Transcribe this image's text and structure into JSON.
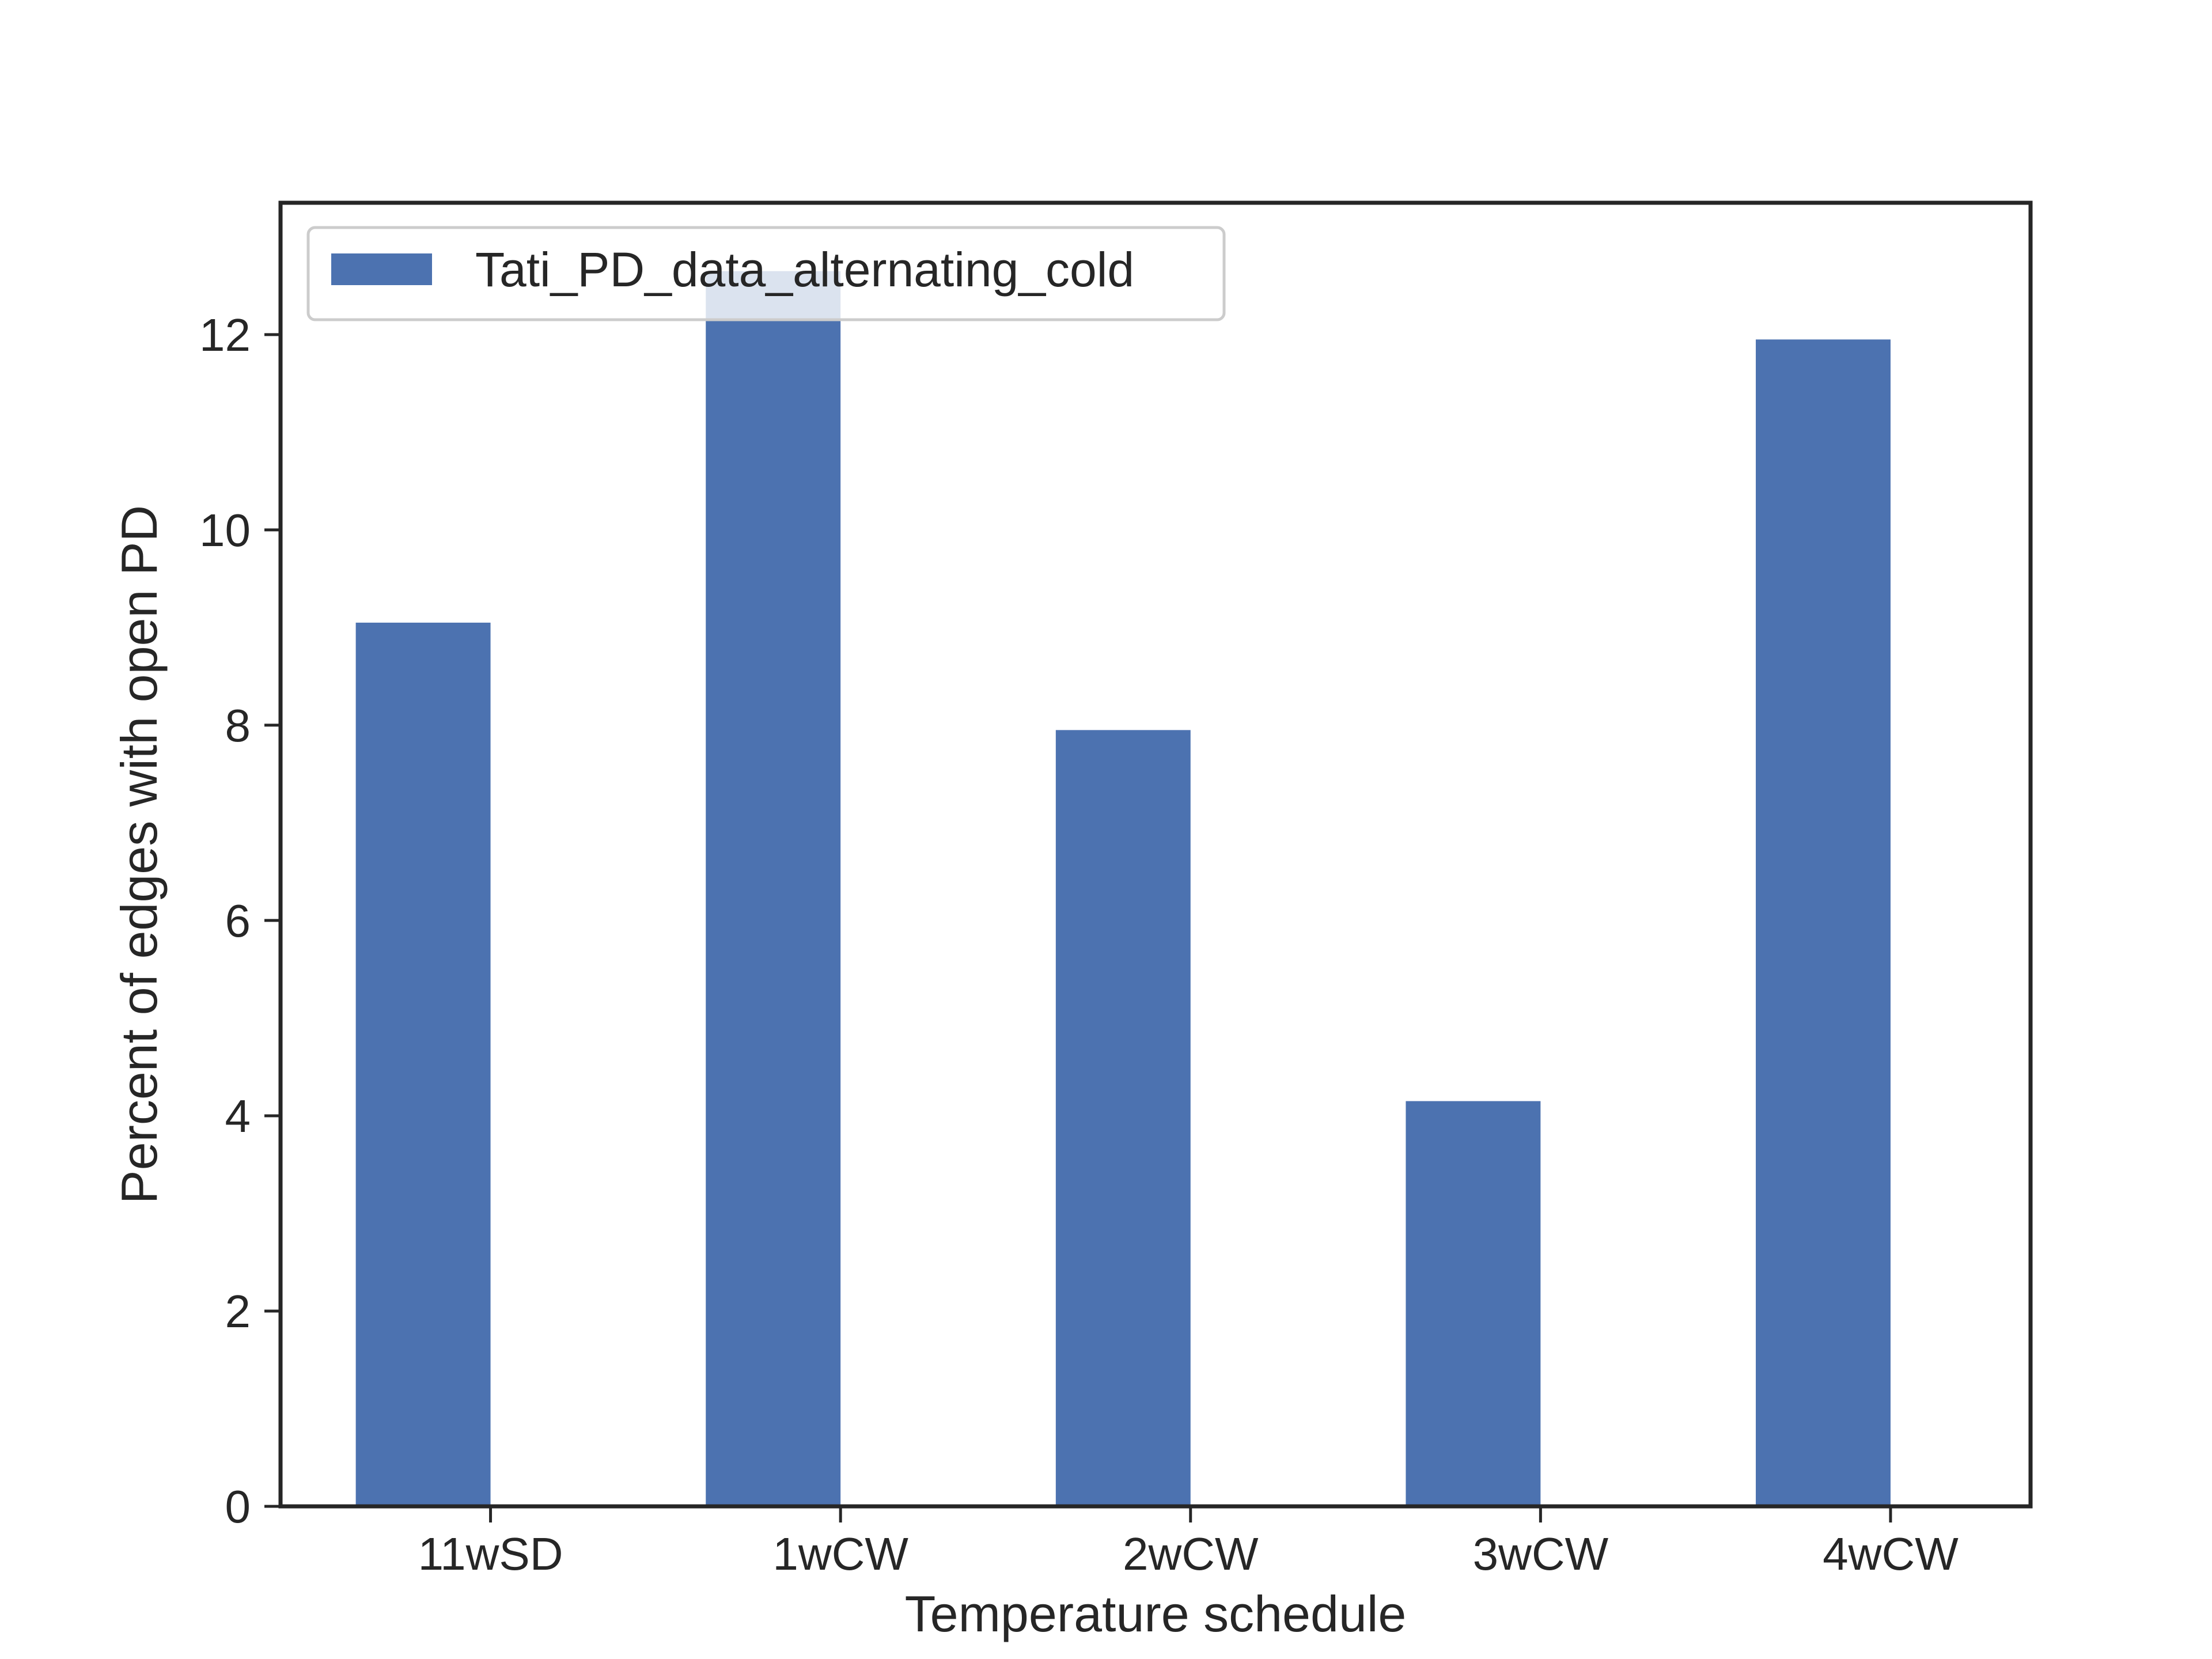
{
  "chart_data": {
    "type": "bar",
    "categories": [
      "11wSD",
      "1wCW",
      "2wCW",
      "3wCW",
      "4wCW"
    ],
    "series": [
      {
        "name": "Tati_PD_data_alternating_cold",
        "values": [
          9.05,
          12.65,
          7.95,
          4.15,
          11.95
        ],
        "color": "#4c72b0"
      }
    ],
    "xlabel": "Temperature schedule",
    "ylabel": "Percent of edges with open PD",
    "ylim": [
      0,
      13.35
    ],
    "yticks": [
      0,
      2,
      4,
      6,
      8,
      10,
      12
    ],
    "grid": false,
    "legend_position": "top-left"
  }
}
